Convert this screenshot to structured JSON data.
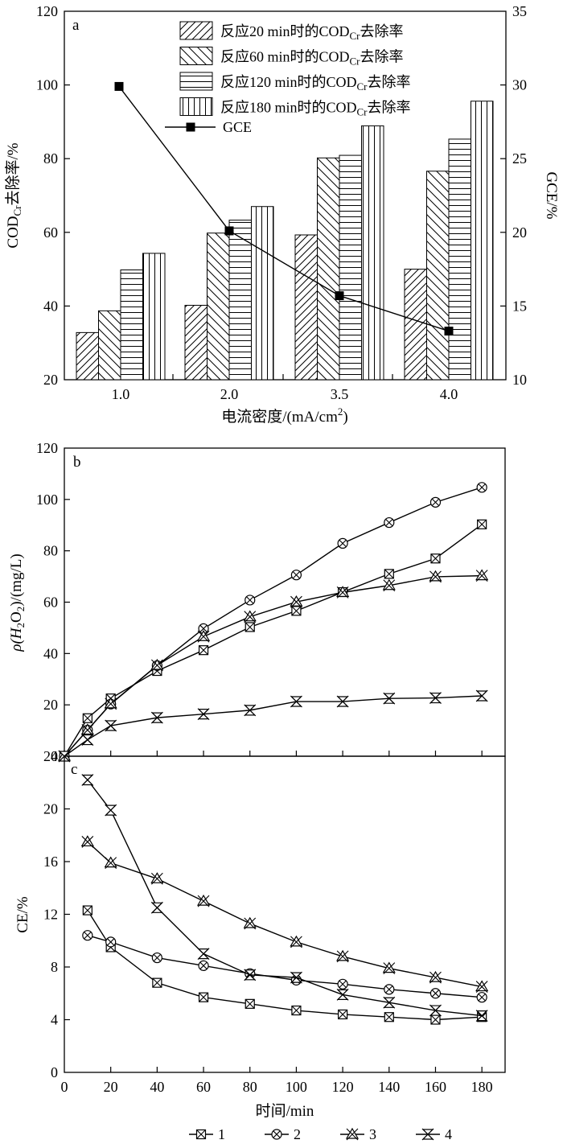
{
  "chart_data": [
    {
      "id": "a",
      "panel_label": "a",
      "type": "bar",
      "categories": [
        "1.0",
        "2.0",
        "3.5",
        "4.0"
      ],
      "xlabel": "电流密度/(mA/cm²)",
      "xlabel_parts": {
        "main": "电流密度/(mA/cm",
        "sup": "2",
        "tail": ")"
      },
      "ylabel": "CODCr去除率/%",
      "ylabel_parts": {
        "main": "COD",
        "sub": "Cr",
        "tail": "去除率/%"
      },
      "y2label": "GCE/%",
      "ylim": [
        20,
        120
      ],
      "yticks": [
        20,
        40,
        60,
        80,
        100,
        120
      ],
      "y2lim": [
        10,
        35
      ],
      "y2ticks": [
        10,
        15,
        20,
        25,
        30,
        35
      ],
      "legend_position": "top-right",
      "series": [
        {
          "name": "反应20 min时的CODCr去除率",
          "name_parts": {
            "pre": "反应20 min时的COD",
            "sub": "Cr",
            "post": "去除率"
          },
          "pattern": "diag-right",
          "values": [
            32.8,
            40.2,
            59.3,
            50.0
          ]
        },
        {
          "name": "反应60 min时的CODCr去除率",
          "name_parts": {
            "pre": "反应60 min时的COD",
            "sub": "Cr",
            "post": "去除率"
          },
          "pattern": "diag-left",
          "values": [
            38.7,
            59.8,
            80.2,
            76.6
          ]
        },
        {
          "name": "反应120 min时的CODCr去除率",
          "name_parts": {
            "pre": "反应120 min时的COD",
            "sub": "Cr",
            "post": "去除率"
          },
          "pattern": "horizontal",
          "values": [
            49.8,
            63.3,
            80.9,
            85.3
          ]
        },
        {
          "name": "反应180 min时的CODCr去除率",
          "name_parts": {
            "pre": "反应180 min时的COD",
            "sub": "Cr",
            "post": "去除率"
          },
          "pattern": "vertical",
          "values": [
            54.3,
            67.0,
            88.9,
            95.6
          ]
        }
      ],
      "line_series": {
        "name": "GCE",
        "axis": "right",
        "marker": "filled-square",
        "values": [
          29.9,
          20.1,
          15.7,
          13.3
        ]
      }
    },
    {
      "id": "b",
      "panel_label": "b",
      "type": "line",
      "ylabel": "ρ(H2O2)/(mg/L)",
      "ylabel_parts": {
        "pre": "ρ(H",
        "sub1": "2",
        "mid": "O",
        "sub2": "2",
        "post": ")/(mg/L)"
      },
      "xlim": [
        0,
        190
      ],
      "ylim": [
        0,
        120
      ],
      "yticks": [
        0,
        20,
        40,
        60,
        80,
        100,
        120
      ],
      "series": [
        {
          "name": "1",
          "marker": "boxed-x",
          "x": [
            0,
            10,
            20,
            40,
            60,
            80,
            100,
            120,
            140,
            160,
            180
          ],
          "values": [
            0,
            14.8,
            22.5,
            33.2,
            41.3,
            50.3,
            56.6,
            63.9,
            71.0,
            77.0,
            90.3
          ]
        },
        {
          "name": "2",
          "marker": "circled-x",
          "x": [
            0,
            10,
            20,
            40,
            60,
            80,
            100,
            120,
            140,
            160,
            180
          ],
          "values": [
            0,
            10.2,
            20.3,
            35.3,
            49.7,
            60.8,
            70.6,
            82.9,
            91.0,
            98.9,
            104.7
          ]
        },
        {
          "name": "3",
          "marker": "triangle-x",
          "x": [
            0,
            10,
            20,
            40,
            60,
            80,
            100,
            120,
            140,
            160,
            180
          ],
          "values": [
            0,
            10.2,
            20.4,
            35.4,
            46.6,
            54.3,
            60.1,
            63.8,
            66.5,
            69.9,
            70.3
          ]
        },
        {
          "name": "4",
          "marker": "hourglass-x",
          "x": [
            0,
            10,
            20,
            40,
            60,
            80,
            100,
            120,
            140,
            160,
            180
          ],
          "values": [
            0,
            6.4,
            11.9,
            15.0,
            16.4,
            17.9,
            21.3,
            21.3,
            22.5,
            22.7,
            23.5
          ]
        }
      ]
    },
    {
      "id": "c",
      "panel_label": "c",
      "type": "line",
      "xlabel": "时间/min",
      "ylabel": "CE/%",
      "xlim": [
        0,
        190
      ],
      "xticks": [
        0,
        20,
        40,
        60,
        80,
        100,
        120,
        140,
        160,
        180
      ],
      "ylim": [
        0,
        24
      ],
      "yticks": [
        0,
        4,
        8,
        12,
        16,
        20,
        24
      ],
      "legend_position": "bottom-center",
      "series": [
        {
          "name": "1",
          "marker": "boxed-x",
          "x": [
            10,
            20,
            40,
            60,
            80,
            100,
            120,
            140,
            160,
            180
          ],
          "values": [
            12.3,
            9.5,
            6.8,
            5.7,
            5.2,
            4.7,
            4.4,
            4.2,
            4.0,
            4.2
          ]
        },
        {
          "name": "2",
          "marker": "circled-x",
          "x": [
            10,
            20,
            40,
            60,
            80,
            100,
            120,
            140,
            160,
            180
          ],
          "values": [
            10.4,
            9.9,
            8.7,
            8.1,
            7.5,
            7.0,
            6.7,
            6.3,
            6.0,
            5.7
          ]
        },
        {
          "name": "3",
          "marker": "triangle-x",
          "x": [
            10,
            20,
            40,
            60,
            80,
            100,
            120,
            140,
            160,
            180
          ],
          "values": [
            17.5,
            15.9,
            14.7,
            13.0,
            11.3,
            9.9,
            8.8,
            7.9,
            7.2,
            6.5
          ]
        },
        {
          "name": "4",
          "marker": "hourglass-x",
          "x": [
            10,
            20,
            40,
            60,
            80,
            100,
            120,
            140,
            160,
            180
          ],
          "values": [
            22.2,
            19.9,
            12.5,
            9.0,
            7.4,
            7.2,
            5.9,
            5.3,
            4.7,
            4.3
          ]
        }
      ]
    }
  ]
}
